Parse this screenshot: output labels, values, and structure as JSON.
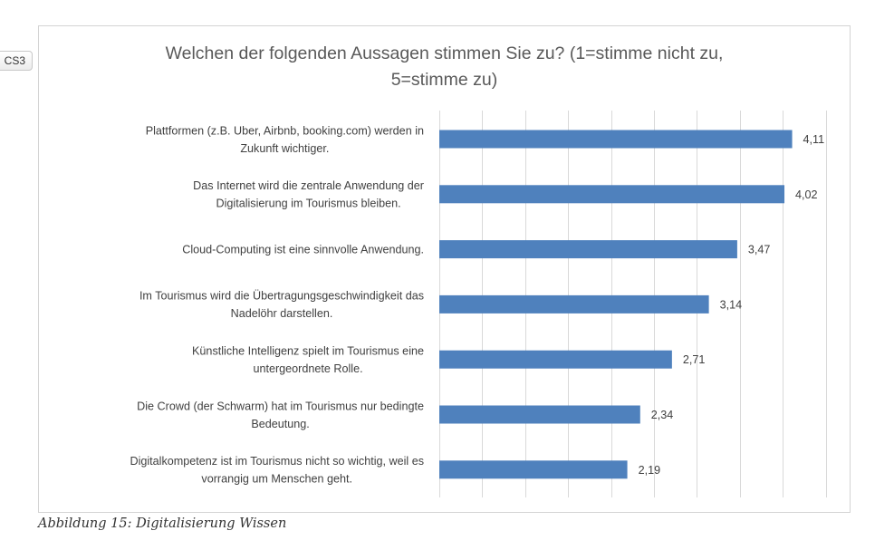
{
  "side_tab": {
    "label": "CS3"
  },
  "caption": "Abbildung 15: Digitalisierung Wissen",
  "chart_data": {
    "type": "bar",
    "orientation": "horizontal",
    "title": "Welchen der folgenden Aussagen stimmen Sie zu? (1=stimme nicht zu,\n5=stimme zu)",
    "categories": [
      [
        "Plattformen (z.B. Uber, Airbnb, booking.com) werden in",
        "Zukunft wichtiger."
      ],
      [
        "Das Internet wird die zentrale Anwendung der",
        "Digitalisierung im Tourismus bleiben."
      ],
      [
        "Cloud-Computing ist eine sinnvolle Anwendung."
      ],
      [
        "Im Tourismus wird die Übertragungsgeschwindigkeit das",
        "Nadelöhr darstellen."
      ],
      [
        "Künstliche Intelligenz spielt im Tourismus eine",
        "untergeordnete Rolle."
      ],
      [
        "Die Crowd (der Schwarm) hat im Tourismus nur bedingte",
        "Bedeutung."
      ],
      [
        "Digitalkompetenz ist im Tourismus nicht so wichtig, weil es",
        "vorrangig um Menschen geht."
      ]
    ],
    "values": [
      4.11,
      4.02,
      3.47,
      3.14,
      2.71,
      2.34,
      2.19
    ],
    "value_labels": [
      "4,11",
      "4,02",
      "3,47",
      "3,14",
      "2,71",
      "2,34",
      "2,19"
    ],
    "xlim": [
      0,
      4.6
    ],
    "x_gridline_step": 0.5,
    "grid": true,
    "x_tick_labels_visible": false,
    "bar_color": "#4f81bd",
    "gridline_color": "#d9d9d9"
  }
}
